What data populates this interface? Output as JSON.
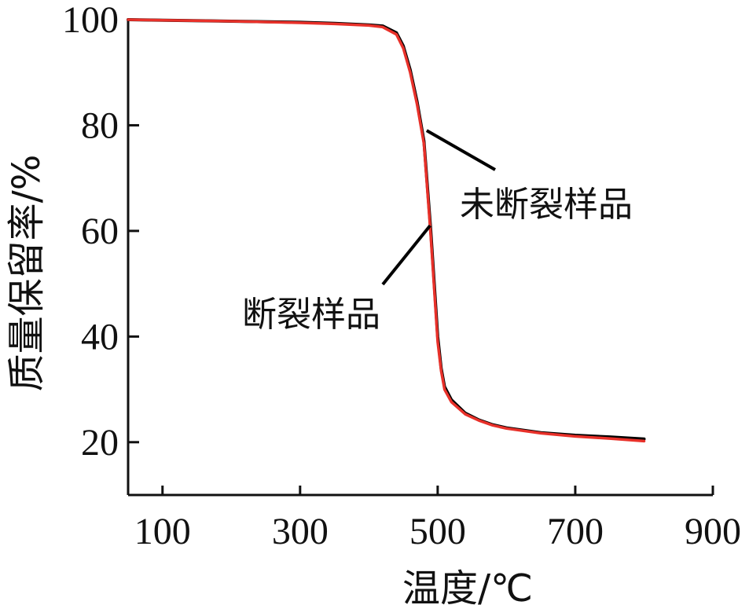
{
  "chart_data": {
    "type": "line",
    "xlabel": "温度/℃",
    "ylabel": "质量保留率/%",
    "xlim": [
      50,
      900
    ],
    "ylim": [
      10,
      100
    ],
    "xticks": [
      100,
      300,
      500,
      700,
      900
    ],
    "yticks": [
      20,
      40,
      60,
      80,
      100
    ],
    "grid": false,
    "series": [
      {
        "name": "未断裂样品",
        "color": "#000000",
        "x": [
          50,
          100,
          200,
          300,
          350,
          400,
          420,
          440,
          450,
          460,
          470,
          480,
          490,
          500,
          505,
          510,
          520,
          540,
          560,
          580,
          600,
          650,
          700,
          750,
          800
        ],
        "y": [
          100,
          99.9,
          99.7,
          99.5,
          99.3,
          99.0,
          98.8,
          97.5,
          95.0,
          90.5,
          84.5,
          77.0,
          60.0,
          40.0,
          34.0,
          30.5,
          28.0,
          25.5,
          24.2,
          23.3,
          22.7,
          21.8,
          21.3,
          21.0,
          20.6
        ]
      },
      {
        "name": "断裂样品",
        "color": "#e8312a",
        "x": [
          50,
          100,
          200,
          300,
          350,
          400,
          420,
          440,
          450,
          460,
          470,
          480,
          490,
          500,
          505,
          510,
          520,
          540,
          560,
          580,
          600,
          650,
          700,
          750,
          800
        ],
        "y": [
          100,
          99.9,
          99.7,
          99.4,
          99.2,
          98.9,
          98.6,
          97.2,
          94.6,
          90.0,
          84.0,
          76.5,
          59.0,
          39.0,
          33.5,
          30.0,
          27.6,
          25.3,
          24.1,
          23.2,
          22.6,
          21.7,
          21.1,
          20.7,
          20.2
        ]
      }
    ],
    "annotations": [
      {
        "text": "未断裂样品",
        "series": "未断裂样品"
      },
      {
        "text": "断裂样品",
        "series": "断裂样品"
      }
    ]
  }
}
